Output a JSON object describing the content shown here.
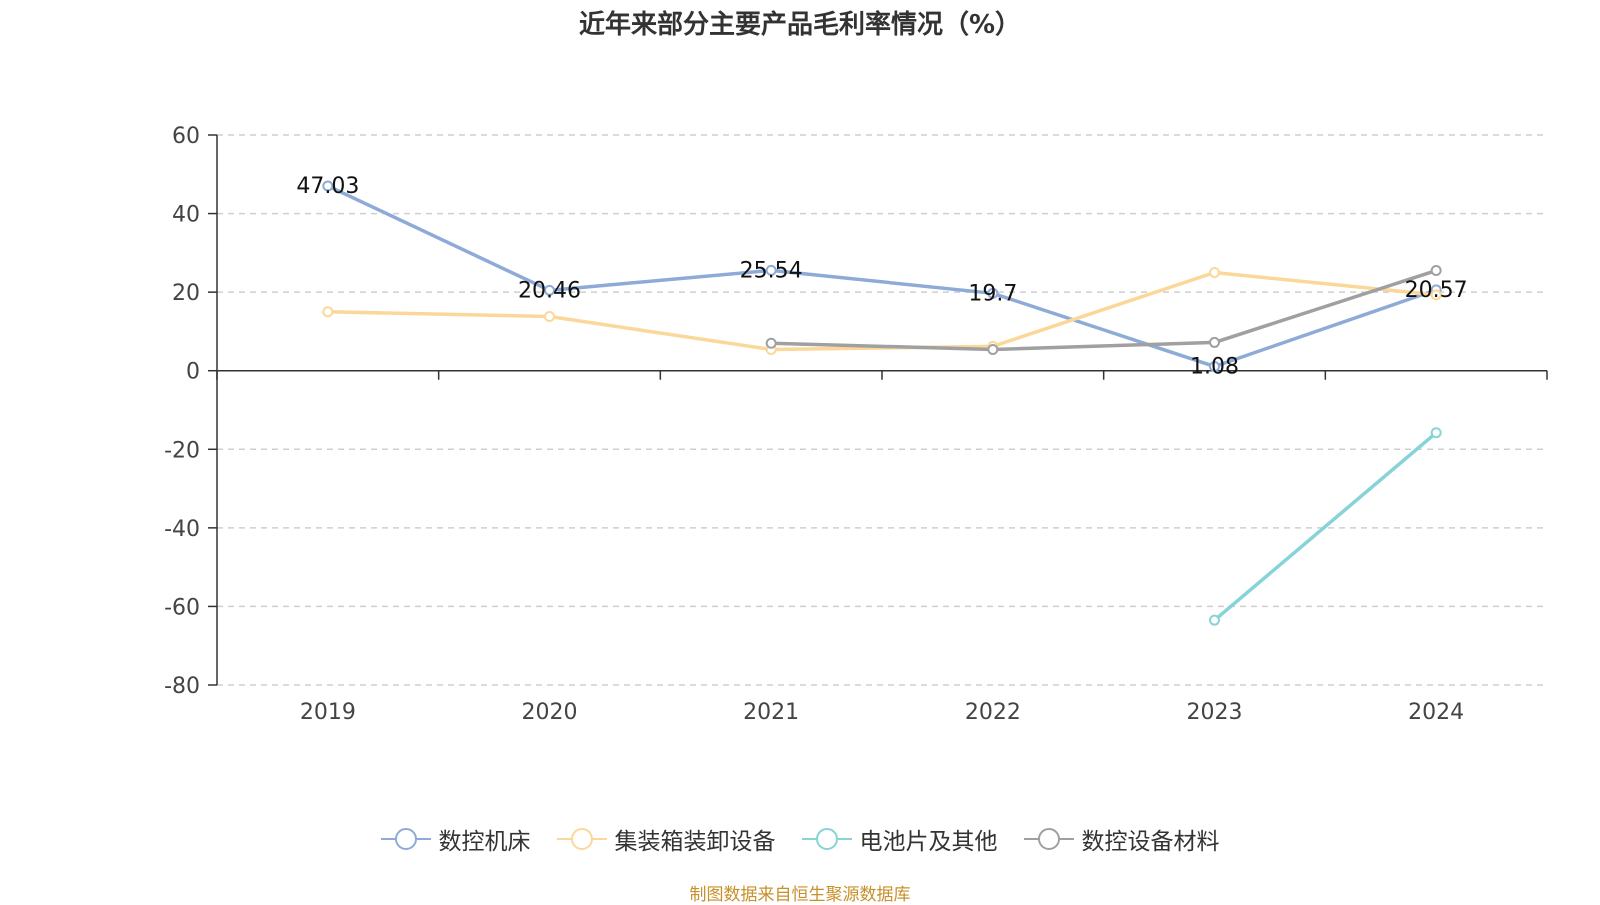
{
  "chart_data": {
    "type": "line",
    "title": "近年来部分主要产品毛利率情况（%）",
    "categories": [
      "2019",
      "2020",
      "2021",
      "2022",
      "2023",
      "2024"
    ],
    "ylim": [
      -80,
      60
    ],
    "yticks": [
      60,
      40,
      20,
      0,
      -20,
      -40,
      -60,
      -80
    ],
    "grid": true,
    "legend_position": "bottom",
    "series": [
      {
        "name": "数控机床",
        "color": "#8eabd8",
        "values": [
          47.03,
          20.46,
          25.54,
          19.7,
          1.08,
          20.57
        ],
        "labels": [
          "47.03",
          "20.46",
          "25.54",
          "19.7",
          "1.08",
          "20.57"
        ]
      },
      {
        "name": "集装箱装卸设备",
        "color": "#fbd899",
        "values": [
          15.0,
          13.8,
          5.4,
          6.2,
          25.0,
          19.3
        ],
        "labels": null
      },
      {
        "name": "电池片及其他",
        "color": "#86d4d8",
        "values": [
          null,
          null,
          null,
          null,
          -63.5,
          -15.8
        ],
        "labels": null
      },
      {
        "name": "数控设备材料",
        "color": "#a0a0a0",
        "values": [
          null,
          null,
          7.0,
          5.4,
          7.2,
          25.5
        ],
        "labels": null
      }
    ]
  },
  "source_note": "制图数据来自恒生聚源数据库"
}
